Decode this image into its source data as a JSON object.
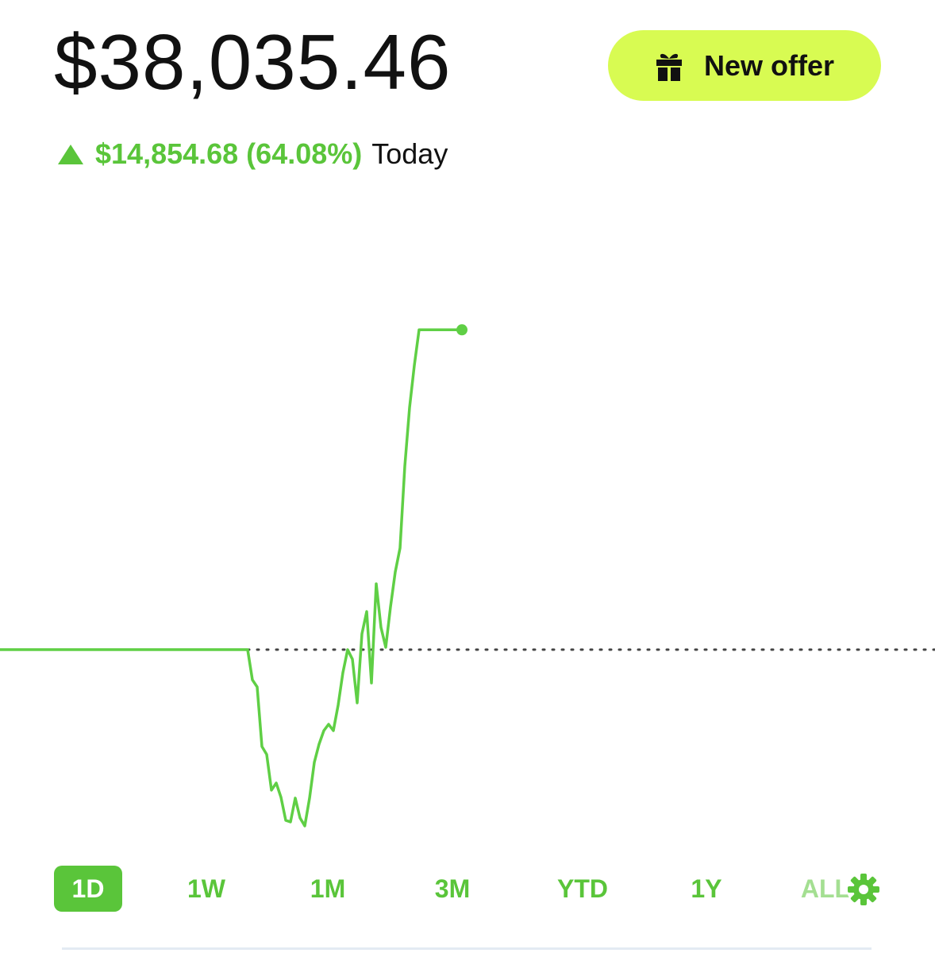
{
  "header": {
    "balance": "$38,035.46",
    "change": "$14,854.68 (64.08%)",
    "period": "Today"
  },
  "offer_button": {
    "label": "New offer"
  },
  "range_tabs": [
    "1D",
    "1W",
    "1M",
    "3M",
    "YTD",
    "1Y",
    "ALL"
  ],
  "chart_data": {
    "type": "line",
    "color": "#5fcf45",
    "ylim": [
      14000,
      40000
    ],
    "reference_line": 23181,
    "values": [
      23181,
      23181,
      23181,
      23181,
      23181,
      23181,
      23181,
      23181,
      23181,
      23181,
      23181,
      23181,
      23181,
      23181,
      23181,
      23181,
      23181,
      23181,
      23181,
      23181,
      23181,
      23181,
      23181,
      23181,
      23181,
      23181,
      23181,
      23181,
      23181,
      23181,
      23181,
      23181,
      23181,
      23181,
      23181,
      23181,
      23181,
      23181,
      23181,
      23181,
      23181,
      23181,
      23181,
      23181,
      23181,
      23181,
      23181,
      23181,
      23181,
      23181,
      23181,
      23181,
      23181,
      21780,
      21449,
      18684,
      18315,
      16657,
      16989,
      16325,
      15256,
      15182,
      16288,
      15367,
      14998,
      16288,
      17947,
      18795,
      19421,
      19716,
      19421,
      20601,
      22112,
      23181,
      22739,
      20711,
      23918,
      24950,
      21633,
      26240,
      24213,
      23292,
      25171,
      26793,
      27899,
      31696,
      34423,
      36377,
      38035,
      38035,
      38035,
      38035,
      38035,
      38035,
      38035,
      38035,
      38035,
      38035
    ]
  }
}
